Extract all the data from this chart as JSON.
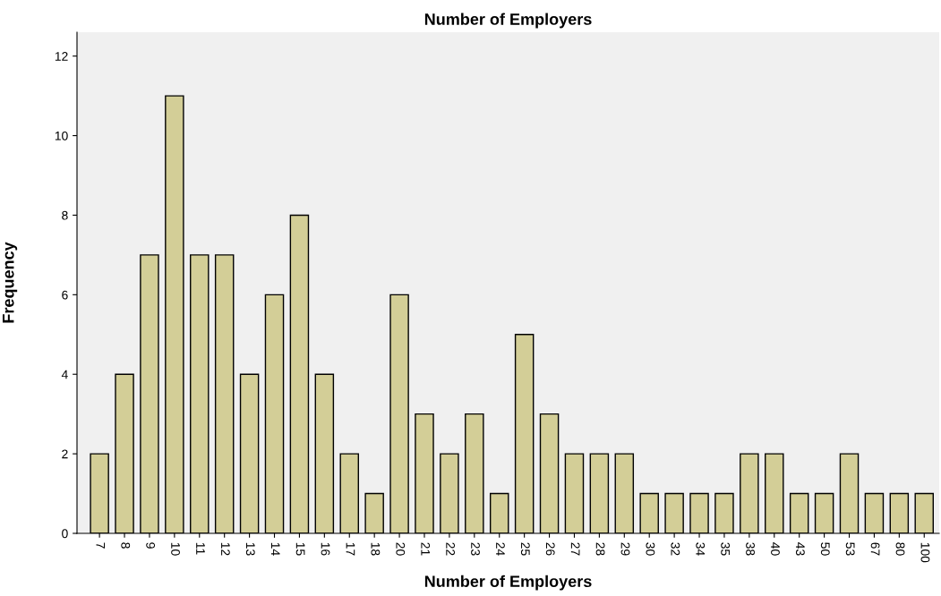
{
  "chart_data": {
    "type": "bar",
    "title": "Number of Employers",
    "xlabel": "Number of Employers",
    "ylabel": "Frequency",
    "categories": [
      "7",
      "8",
      "9",
      "10",
      "11",
      "12",
      "13",
      "14",
      "15",
      "16",
      "17",
      "18",
      "20",
      "21",
      "22",
      "23",
      "24",
      "25",
      "26",
      "27",
      "28",
      "29",
      "30",
      "32",
      "34",
      "35",
      "38",
      "40",
      "43",
      "50",
      "53",
      "67",
      "80",
      "100"
    ],
    "values": [
      2,
      4,
      7,
      11,
      7,
      7,
      4,
      6,
      8,
      4,
      2,
      1,
      6,
      3,
      2,
      3,
      1,
      5,
      3,
      2,
      2,
      2,
      1,
      1,
      1,
      1,
      2,
      2,
      1,
      1,
      2,
      1,
      1,
      1
    ],
    "color": "#d3ce97",
    "ylim": [
      0,
      12.6
    ],
    "yticks": [
      0,
      2,
      4,
      6,
      8,
      10,
      12
    ],
    "grid": false,
    "legend": false
  }
}
